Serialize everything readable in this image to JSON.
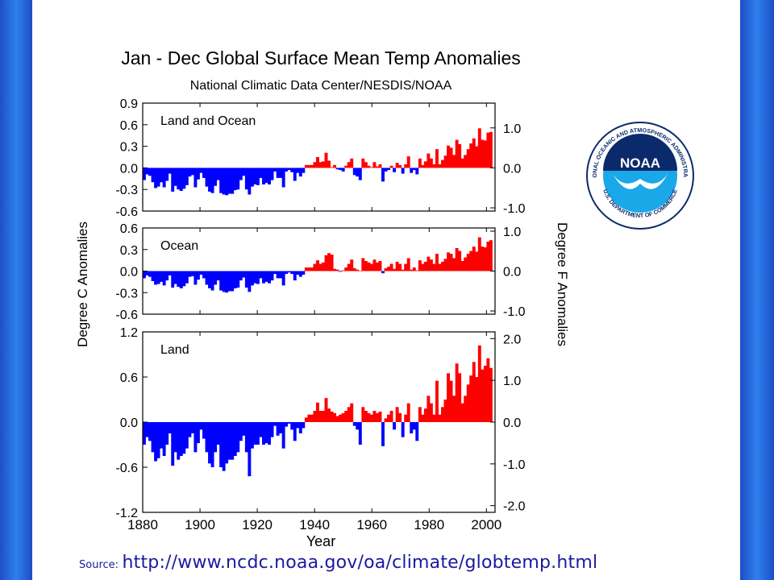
{
  "source": {
    "label": "Source:",
    "url": "http://www.ncdc.noaa.gov/oa/climate/globtemp.html"
  },
  "logo": {
    "text": "NOAA",
    "ring_text": "NATIONAL OCEANIC AND ATMOSPHERIC ADMINISTRATION",
    "bottom_text": "U.S. DEPARTMENT OF COMMERCE",
    "icon": "noaa-seal-icon"
  },
  "colors": {
    "positive": "#ff0000",
    "negative": "#0000ff"
  },
  "chart_data": {
    "type": "bar",
    "title": "Jan - Dec Global Surface Mean Temp Anomalies",
    "subtitle": "National Climatic Data Center/NESDIS/NOAA",
    "xlabel": "Year",
    "ylabel_left": "Degree C Anomalies",
    "ylabel_right": "Degree F Anomalies",
    "x_ticks": [
      "1880",
      "1900",
      "1920",
      "1940",
      "1960",
      "1980",
      "2000"
    ],
    "x_start": 1880,
    "x_end": 2003,
    "panels": [
      {
        "name": "Land and Ocean",
        "ylim": [
          -0.6,
          0.9
        ],
        "yticks_c": [
          "0.9",
          "0.6",
          "0.3",
          "0.0",
          "-0.3",
          "-0.6"
        ],
        "ylim_f": [
          -1.08,
          1.62
        ],
        "yticks_f": [
          "1.0",
          "0.0",
          "-1.0"
        ],
        "values": [
          -0.17,
          -0.09,
          -0.11,
          -0.2,
          -0.28,
          -0.26,
          -0.2,
          -0.27,
          -0.18,
          -0.08,
          -0.33,
          -0.25,
          -0.3,
          -0.32,
          -0.29,
          -0.24,
          -0.12,
          -0.1,
          -0.27,
          -0.16,
          -0.07,
          -0.14,
          -0.26,
          -0.33,
          -0.35,
          -0.25,
          -0.17,
          -0.35,
          -0.37,
          -0.38,
          -0.36,
          -0.36,
          -0.31,
          -0.3,
          -0.17,
          -0.11,
          -0.3,
          -0.37,
          -0.26,
          -0.23,
          -0.24,
          -0.14,
          -0.23,
          -0.21,
          -0.23,
          -0.17,
          -0.05,
          -0.14,
          -0.14,
          -0.27,
          -0.05,
          -0.03,
          -0.06,
          -0.18,
          -0.07,
          -0.12,
          -0.07,
          0.04,
          0.04,
          0.04,
          0.08,
          0.15,
          0.08,
          0.09,
          0.21,
          0.1,
          0.01,
          0.04,
          -0.02,
          -0.03,
          -0.05,
          0.03,
          0.08,
          0.13,
          -0.1,
          -0.12,
          -0.17,
          0.13,
          0.08,
          0.03,
          0.01,
          0.08,
          0.02,
          0.05,
          -0.19,
          -0.05,
          -0.03,
          0.03,
          -0.06,
          0.07,
          0.04,
          -0.08,
          0.05,
          0.16,
          -0.07,
          -0.03,
          -0.09,
          0.13,
          0.04,
          0.09,
          0.2,
          0.13,
          0.05,
          0.26,
          0.05,
          0.11,
          0.17,
          0.31,
          0.28,
          0.18,
          0.39,
          0.33,
          0.13,
          0.18,
          0.26,
          0.34,
          0.41,
          0.3,
          0.55,
          0.39,
          0.38,
          0.49,
          0.5
        ],
        "label_x": "1882"
      },
      {
        "name": "Ocean",
        "ylim": [
          -0.6,
          0.6
        ],
        "yticks_c": [
          "0.6",
          "0.3",
          "0.0",
          "-0.3",
          "-0.6"
        ],
        "ylim_f": [
          -1.08,
          1.08
        ],
        "yticks_f": [
          "1.0",
          "0.0",
          "-1.0"
        ],
        "values": [
          -0.1,
          -0.06,
          -0.08,
          -0.14,
          -0.19,
          -0.18,
          -0.15,
          -0.2,
          -0.13,
          -0.06,
          -0.23,
          -0.18,
          -0.22,
          -0.24,
          -0.21,
          -0.17,
          -0.08,
          -0.07,
          -0.19,
          -0.12,
          -0.05,
          -0.1,
          -0.19,
          -0.24,
          -0.27,
          -0.19,
          -0.13,
          -0.27,
          -0.29,
          -0.3,
          -0.28,
          -0.28,
          -0.24,
          -0.23,
          -0.13,
          -0.09,
          -0.23,
          -0.29,
          -0.2,
          -0.17,
          -0.18,
          -0.1,
          -0.17,
          -0.15,
          -0.17,
          -0.13,
          -0.04,
          -0.1,
          -0.1,
          -0.2,
          -0.04,
          -0.02,
          -0.04,
          -0.13,
          -0.05,
          -0.08,
          -0.05,
          0.05,
          0.05,
          0.05,
          0.1,
          0.15,
          0.1,
          0.12,
          0.22,
          0.25,
          0.23,
          0.03,
          0.02,
          -0.01,
          0.01,
          0.05,
          0.1,
          0.16,
          0.04,
          0.02,
          0.0,
          0.18,
          0.14,
          0.12,
          0.1,
          0.16,
          0.12,
          0.14,
          -0.03,
          0.04,
          0.06,
          0.1,
          0.03,
          0.13,
          0.1,
          0.02,
          0.1,
          0.18,
          0.02,
          0.05,
          0.01,
          0.15,
          0.1,
          0.13,
          0.2,
          0.16,
          0.1,
          0.24,
          0.1,
          0.13,
          0.17,
          0.26,
          0.24,
          0.18,
          0.32,
          0.28,
          0.14,
          0.19,
          0.24,
          0.28,
          0.34,
          0.27,
          0.47,
          0.34,
          0.33,
          0.41,
          0.43
        ],
        "label_x": "1882"
      },
      {
        "name": "Land",
        "ylim": [
          -1.2,
          1.2
        ],
        "yticks_c": [
          "1.2",
          "0.6",
          "0.0",
          "-0.6",
          "-1.2"
        ],
        "ylim_f": [
          -2.16,
          2.16
        ],
        "yticks_f": [
          "2.0",
          "1.0",
          "0.0",
          "-1.0",
          "-2.0"
        ],
        "values": [
          -0.3,
          -0.2,
          -0.25,
          -0.4,
          -0.52,
          -0.48,
          -0.35,
          -0.45,
          -0.3,
          -0.15,
          -0.58,
          -0.4,
          -0.5,
          -0.45,
          -0.42,
          -0.35,
          -0.2,
          -0.15,
          -0.4,
          -0.28,
          -0.1,
          -0.22,
          -0.4,
          -0.55,
          -0.6,
          -0.4,
          -0.3,
          -0.6,
          -0.65,
          -0.55,
          -0.5,
          -0.5,
          -0.45,
          -0.4,
          -0.25,
          -0.18,
          -0.4,
          -0.72,
          -0.35,
          -0.3,
          -0.3,
          -0.2,
          -0.3,
          -0.28,
          -0.3,
          -0.2,
          -0.05,
          -0.18,
          -0.15,
          -0.35,
          -0.06,
          -0.02,
          -0.1,
          -0.25,
          -0.08,
          -0.15,
          -0.08,
          0.06,
          0.1,
          0.1,
          0.15,
          0.26,
          0.15,
          0.15,
          0.32,
          0.18,
          0.14,
          0.12,
          0.08,
          0.1,
          0.12,
          0.15,
          0.2,
          0.25,
          -0.05,
          -0.1,
          -0.3,
          0.2,
          0.15,
          0.12,
          0.1,
          0.15,
          0.12,
          0.14,
          -0.32,
          0.05,
          0.1,
          0.15,
          -0.1,
          0.2,
          0.12,
          -0.2,
          0.1,
          0.25,
          -0.15,
          -0.1,
          -0.25,
          0.2,
          0.1,
          0.18,
          0.35,
          0.25,
          0.1,
          0.55,
          0.1,
          0.2,
          0.3,
          0.65,
          0.55,
          0.35,
          0.78,
          0.65,
          0.25,
          0.35,
          0.5,
          0.62,
          0.8,
          0.6,
          1.02,
          0.7,
          0.75,
          0.85,
          0.72
        ],
        "label_x": "1882"
      }
    ]
  }
}
